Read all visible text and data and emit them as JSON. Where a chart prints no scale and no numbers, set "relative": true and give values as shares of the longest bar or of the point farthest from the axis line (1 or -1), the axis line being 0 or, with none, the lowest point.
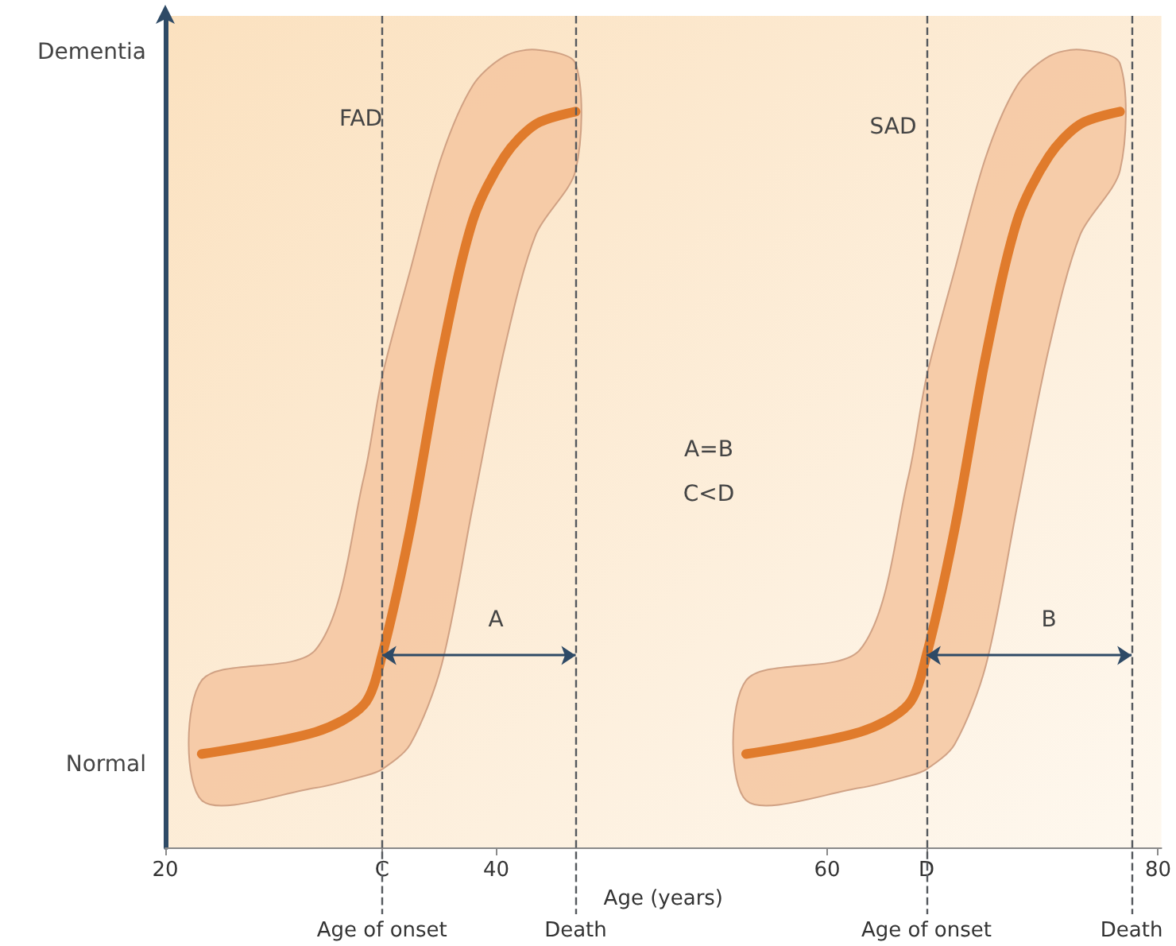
{
  "chart_data": {
    "type": "line",
    "relative": true,
    "x": [
      22.2,
      29.1,
      32.0,
      33.1,
      34.8,
      36.7,
      38.6,
      40.5,
      42.4,
      44.8
    ],
    "series": [
      {
        "color": "#e07b2c",
        "values": [
          0.127,
          0.157,
          0.194,
          0.261,
          0.432,
          0.669,
          0.853,
          0.939,
          0.983,
          1
        ],
        "lower": [
          0.064,
          0.081,
          0.097,
          0.106,
          0.14,
          0.248,
          0.465,
          0.678,
          0.833,
          0.92
        ],
        "upper": [
          0.227,
          0.269,
          0.503,
          0.639,
          0.784,
          0.939,
          1.036,
          1.075,
          1.084,
          1.065
        ]
      },
      {
        "color": "#e07b2c",
        "x": [
          55.1,
          62.0,
          64.9,
          66.0,
          67.7,
          69.6,
          71.5,
          73.4,
          75.3,
          77.7
        ],
        "values": [
          0.127,
          0.157,
          0.194,
          0.261,
          0.432,
          0.669,
          0.853,
          0.939,
          0.983,
          1
        ],
        "lower": [
          0.064,
          0.081,
          0.097,
          0.106,
          0.14,
          0.248,
          0.465,
          0.678,
          0.833,
          0.92
        ],
        "upper": [
          0.227,
          0.269,
          0.503,
          0.639,
          0.784,
          0.939,
          1.036,
          1.075,
          1.084,
          1.065
        ]
      }
    ],
    "xlabel": "Age (years)",
    "xlim": [
      20,
      80.2
    ],
    "xticks": [
      20,
      {
        "value": 33.1,
        "label": "C"
      },
      40,
      60,
      {
        "value": 66.0,
        "label": "D"
      },
      80
    ],
    "ref_lines": [
      {
        "axis": "x",
        "value": 33.1,
        "label": "Age of onset",
        "line_style": "dashed"
      },
      {
        "axis": "x",
        "value": 44.8,
        "label": "Death",
        "line_style": "dashed"
      },
      {
        "axis": "x",
        "value": 66.0,
        "label": "Age of onset",
        "line_style": "dashed"
      },
      {
        "axis": "x",
        "value": 78.4,
        "label": "Death",
        "line_style": "dashed"
      }
    ],
    "annotations": [
      "Dementia",
      "Normal",
      "FAD",
      "SAD",
      "A=B",
      "C<D",
      "A",
      "B"
    ],
    "grid": false,
    "marker": "none",
    "line_style": "solid"
  }
}
